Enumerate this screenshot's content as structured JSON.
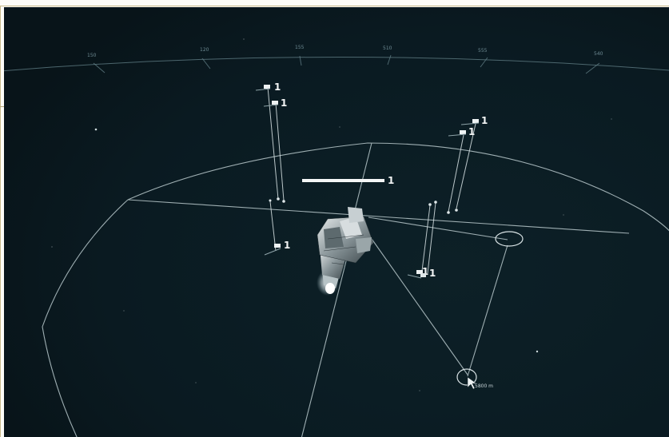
{
  "heading_scale": {
    "ticks": [
      "150",
      "120",
      "155",
      "510",
      "555",
      "540"
    ]
  },
  "squads": [
    {
      "id": "fighter-a",
      "count": "1"
    },
    {
      "id": "fighter-b",
      "count": "1"
    },
    {
      "id": "fighter-c",
      "count": "1"
    },
    {
      "id": "fighter-d",
      "count": "1"
    },
    {
      "id": "fighter-e",
      "count": "1"
    },
    {
      "id": "fighter-f",
      "count": "1"
    },
    {
      "id": "fighter-g",
      "count": "1"
    }
  ],
  "selected_ship": {
    "count": "1"
  },
  "waypoint": {
    "distance": "5800 m"
  },
  "colors": {
    "hud_line": "#cfdadc",
    "space": "#0b1d24",
    "frame_border": "#c9b98a"
  }
}
